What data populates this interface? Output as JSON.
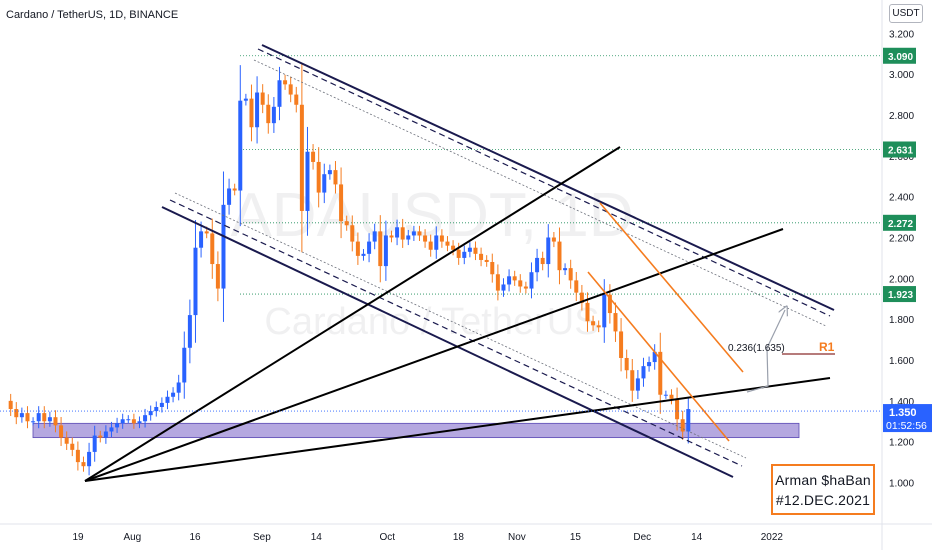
{
  "header": {
    "title": "Cardano / TetherUS, 1D, BINANCE",
    "currency": "USDT"
  },
  "watermark": {
    "symbol": "ADAUSDT, 1D",
    "name": "Cardano / TetherUS"
  },
  "colors": {
    "bull": "#2962ff",
    "bear": "#f57c1f",
    "trendline": "#000000",
    "channel": "#1a1a4e",
    "orange_channel": "#f57c1f",
    "support_zone": "#9c8bd6",
    "price_label": "#2962ff",
    "level_label": "#1e8e5a"
  },
  "chart_data": {
    "type": "candlestick",
    "title": "Cardano / TetherUS, 1D, BINANCE",
    "ylim": [
      0.96,
      3.24
    ],
    "y_ticks": [
      "3.200",
      "3.000",
      "2.800",
      "2.600",
      "2.400",
      "2.200",
      "2.000",
      "1.800",
      "1.600",
      "1.400",
      "1.200",
      "1.000"
    ],
    "x_ticks": [
      {
        "label": "19",
        "date": "2021-07-19"
      },
      {
        "label": "Aug",
        "date": "2021-08-01"
      },
      {
        "label": "16",
        "date": "2021-08-16"
      },
      {
        "label": "Sep",
        "date": "2021-09-01"
      },
      {
        "label": "14",
        "date": "2021-09-14"
      },
      {
        "label": "Oct",
        "date": "2021-10-01"
      },
      {
        "label": "18",
        "date": "2021-10-18"
      },
      {
        "label": "Nov",
        "date": "2021-11-01"
      },
      {
        "label": "15",
        "date": "2021-11-15"
      },
      {
        "label": "Dec",
        "date": "2021-12-01"
      },
      {
        "label": "14",
        "date": "2021-12-14"
      },
      {
        "label": "2022",
        "date": "2022-01-01"
      }
    ],
    "levels": [
      {
        "label": "3.090",
        "value": 3.09
      },
      {
        "label": "2.631",
        "value": 2.631
      },
      {
        "label": "2.272",
        "value": 2.272
      },
      {
        "label": "1.923",
        "value": 1.923
      }
    ],
    "current_price": {
      "label": "1.350",
      "value": 1.35,
      "countdown": "01:52:56"
    },
    "annotations": {
      "fib": "0.236(1.635)",
      "r1": "R1",
      "author_line1": "Arman $haBan",
      "author_line2": "#12.DEC.2021"
    },
    "support_zone": {
      "from": 1.22,
      "to": 1.29
    },
    "closes": [
      1.36,
      1.32,
      1.34,
      1.3,
      1.3,
      1.34,
      1.3,
      1.32,
      1.28,
      1.22,
      1.19,
      1.16,
      1.1,
      1.08,
      1.15,
      1.23,
      1.22,
      1.25,
      1.27,
      1.29,
      1.31,
      1.31,
      1.29,
      1.3,
      1.33,
      1.35,
      1.37,
      1.39,
      1.42,
      1.44,
      1.49,
      1.66,
      1.82,
      2.15,
      2.23,
      2.22,
      2.07,
      1.95,
      2.36,
      2.44,
      2.43,
      2.87,
      2.88,
      2.74,
      2.91,
      2.85,
      2.76,
      2.84,
      2.97,
      2.95,
      2.9,
      2.85,
      2.33,
      2.62,
      2.57,
      2.42,
      2.51,
      2.53,
      2.46,
      2.28,
      2.26,
      2.18,
      2.11,
      2.12,
      2.18,
      2.23,
      2.06,
      2.21,
      2.2,
      2.25,
      2.19,
      2.21,
      2.23,
      2.21,
      2.18,
      2.14,
      2.21,
      2.18,
      2.16,
      2.14,
      2.1,
      2.13,
      2.15,
      2.12,
      2.09,
      2.08,
      2.02,
      1.94,
      1.97,
      2.01,
      1.99,
      1.96,
      1.95,
      2.03,
      2.1,
      2.07,
      2.2,
      2.18,
      2.04,
      2.05,
      1.99,
      1.93,
      1.88,
      1.79,
      1.77,
      1.76,
      1.92,
      1.83,
      1.74,
      1.61,
      1.55,
      1.45,
      1.51,
      1.57,
      1.59,
      1.64,
      1.43,
      1.43,
      1.41,
      1.31,
      1.25,
      1.36
    ],
    "last_date": "2021-12-12"
  }
}
